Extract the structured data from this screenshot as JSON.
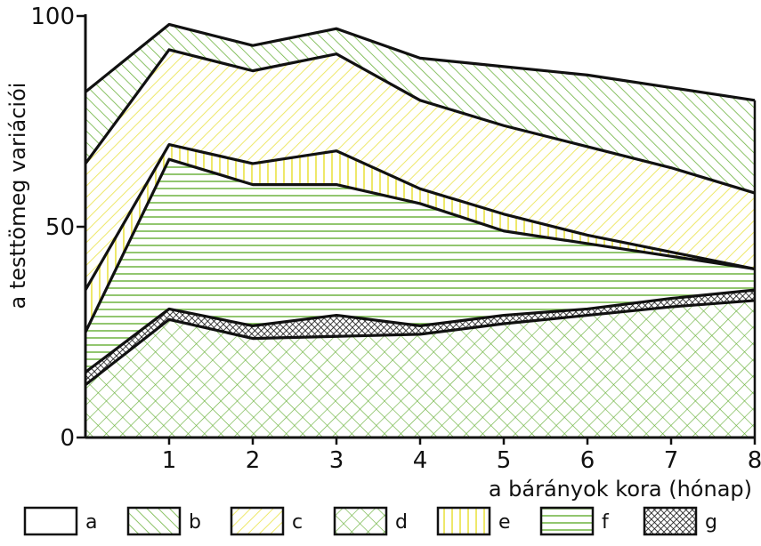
{
  "chart_data": {
    "type": "area",
    "title": "",
    "xlabel": "a bárányok kora (hónap)",
    "ylabel": "a testtömeg variációi",
    "xlim": [
      0,
      8
    ],
    "ylim": [
      0,
      100
    ],
    "x_ticks": [
      "1",
      "2",
      "3",
      "4",
      "5",
      "6",
      "7",
      "8"
    ],
    "y_ticks": [
      "0",
      "50",
      "100"
    ],
    "x": [
      0,
      1,
      2,
      3,
      4,
      5,
      6,
      7,
      8
    ],
    "boundaries": [
      [
        0,
        0,
        0,
        0,
        0,
        0,
        0,
        0,
        0
      ],
      [
        12.5,
        28,
        23.5,
        24,
        24.5,
        27,
        29,
        31,
        32.5
      ],
      [
        15.5,
        30.5,
        26.5,
        29,
        26.5,
        29,
        30.5,
        33,
        35
      ],
      [
        25,
        66,
        60,
        60,
        55.5,
        49,
        46,
        43,
        40
      ],
      [
        35,
        69.5,
        65,
        68,
        59,
        53,
        48,
        44,
        40
      ],
      [
        65,
        92,
        87,
        91,
        80,
        74,
        69,
        64,
        58
      ],
      [
        82,
        98,
        93,
        97,
        90,
        88,
        86,
        83,
        80
      ]
    ],
    "series": [
      {
        "name": "d",
        "pattern": "crosshatch",
        "lower": 0,
        "upper": 1
      },
      {
        "name": "g",
        "pattern": "dense-crosshatch",
        "lower": 1,
        "upper": 2
      },
      {
        "name": "f",
        "pattern": "horizontal",
        "lower": 2,
        "upper": 3
      },
      {
        "name": "e",
        "pattern": "vertical",
        "lower": 3,
        "upper": 4
      },
      {
        "name": "c",
        "pattern": "diagonal-yellow",
        "lower": 4,
        "upper": 5
      },
      {
        "name": "b",
        "pattern": "diagonal-green",
        "lower": 5,
        "upper": 6
      }
    ],
    "legend": {
      "placement": "bottom",
      "items": [
        {
          "label": "a",
          "pattern": "none"
        },
        {
          "label": "b",
          "pattern": "diagonal-green"
        },
        {
          "label": "c",
          "pattern": "diagonal-yellow"
        },
        {
          "label": "d",
          "pattern": "crosshatch"
        },
        {
          "label": "e",
          "pattern": "vertical"
        },
        {
          "label": "f",
          "pattern": "horizontal"
        },
        {
          "label": "g",
          "pattern": "dense-crosshatch"
        }
      ]
    },
    "colors": {
      "green": "#6db33f",
      "yellow": "#eee86a",
      "outline": "#111111"
    },
    "grid": false
  }
}
